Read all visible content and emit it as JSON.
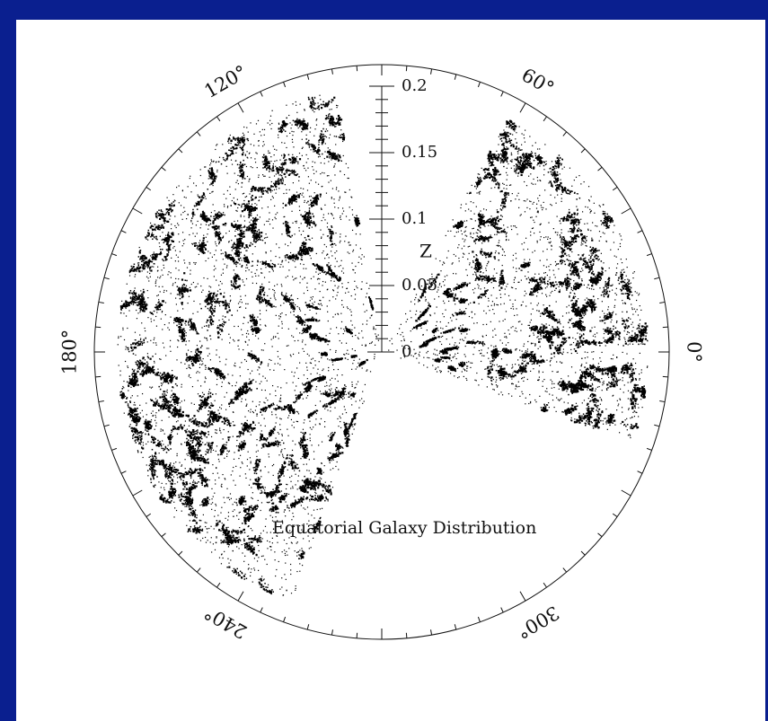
{
  "slide": {
    "background_color": "#0a1f8f",
    "panel_color": "#ffffff"
  },
  "chart_data": {
    "type": "scatter",
    "coordinate_system": "polar-wedge",
    "title": "Equatorial Galaxy Distribution",
    "radial_axis": {
      "label": "Z",
      "range": [
        0,
        0.2
      ],
      "major_ticks": [
        0,
        0.05,
        0.1,
        0.15,
        0.2
      ],
      "major_tick_labels": [
        "0",
        "0.05",
        "0.1",
        "0.15",
        "0.2"
      ],
      "minor_tick_step": 0.01
    },
    "angular_axis": {
      "units": "degrees",
      "labels": [
        {
          "angle": 0,
          "text": "0°"
        },
        {
          "angle": 60,
          "text": "60°"
        },
        {
          "angle": 120,
          "text": "120°"
        },
        {
          "angle": 180,
          "text": "180°"
        },
        {
          "angle": 240,
          "text": "240°"
        },
        {
          "angle": 300,
          "text": "300°"
        }
      ],
      "tick_step": 5,
      "major_tick_step": 30
    },
    "series": [
      {
        "angle_range": [
          100,
          250
        ],
        "z_range": [
          0,
          0.2
        ],
        "point_color": "#000000"
      },
      {
        "angle_range": [
          -20,
          62
        ],
        "z_range": [
          0,
          0.2
        ],
        "point_color": "#000000"
      }
    ],
    "grid": false,
    "legend": "none"
  }
}
